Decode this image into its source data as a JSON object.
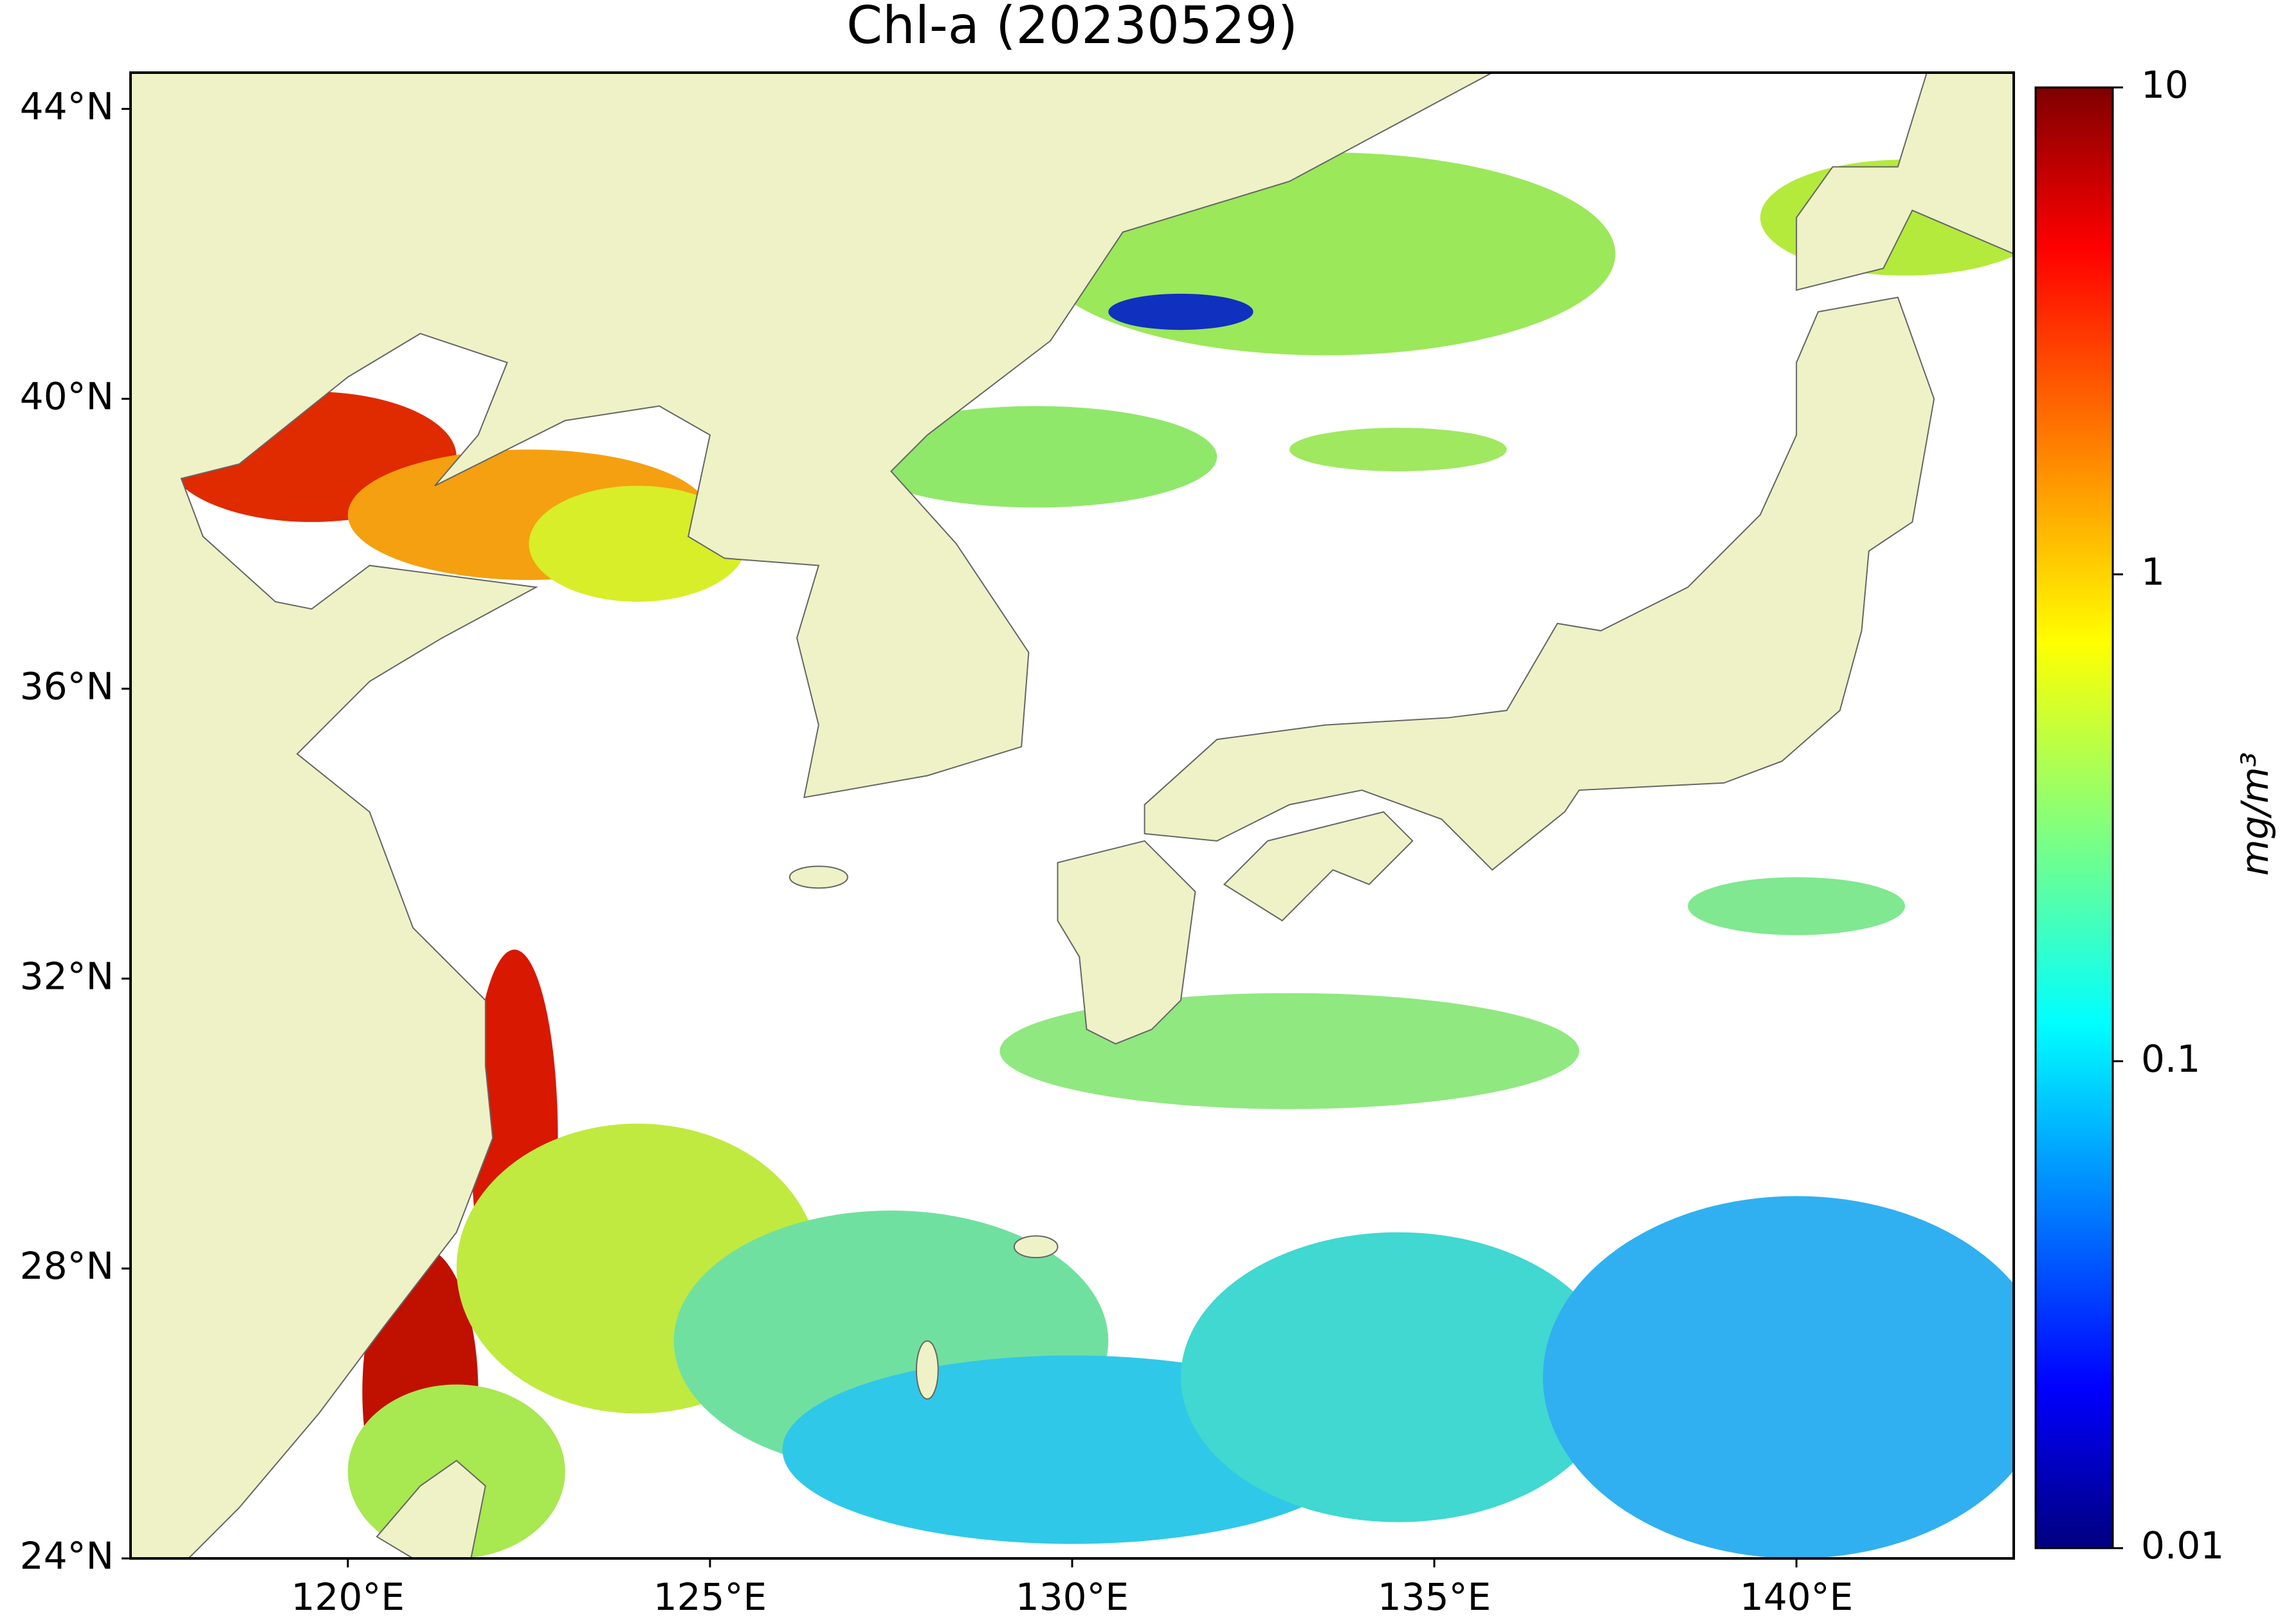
{
  "chart_data": {
    "type": "map",
    "title": "Chl-a (20230529)",
    "xlim": [
      117,
      143
    ],
    "ylim": [
      24,
      44.5
    ],
    "xticks": [
      {
        "value": 120,
        "label": "120°E"
      },
      {
        "value": 125,
        "label": "125°E"
      },
      {
        "value": 130,
        "label": "130°E"
      },
      {
        "value": 135,
        "label": "135°E"
      },
      {
        "value": 140,
        "label": "140°E"
      }
    ],
    "yticks": [
      {
        "value": 24,
        "label": "24°N"
      },
      {
        "value": 28,
        "label": "28°N"
      },
      {
        "value": 32,
        "label": "32°N"
      },
      {
        "value": 36,
        "label": "36°N"
      },
      {
        "value": 40,
        "label": "40°N"
      },
      {
        "value": 44,
        "label": "44°N"
      }
    ],
    "colorbar": {
      "label": "mg/m³",
      "scale": "log",
      "lim": [
        0.01,
        10
      ],
      "ticks": [
        0.01,
        0.1,
        1,
        10
      ]
    }
  }
}
